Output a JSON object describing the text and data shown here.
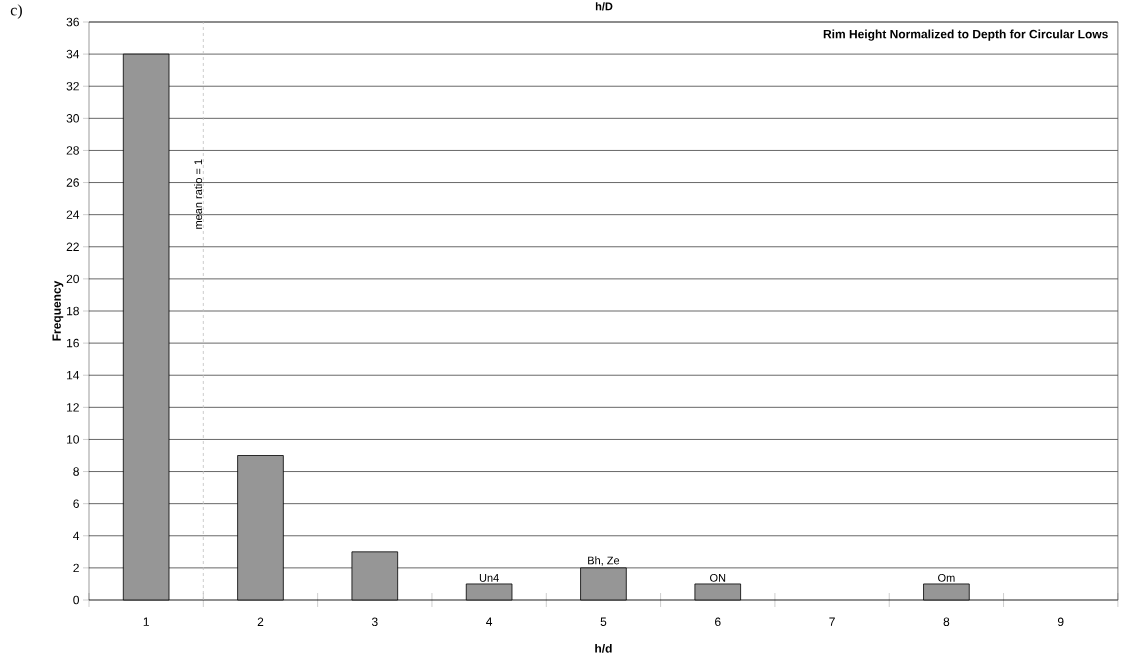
{
  "chart_data": {
    "type": "bar",
    "title": "Rim Height Normalized to Depth for Circular Lows",
    "xlabel": "h/d",
    "ylabel": "Frequency",
    "x": [
      1,
      2,
      3,
      4,
      5,
      6,
      7,
      8,
      9
    ],
    "values": [
      34,
      9,
      3,
      1,
      2,
      1,
      0,
      1,
      0
    ],
    "color": "#969696",
    "xlim": [
      0.5,
      9.5
    ],
    "xticks": [
      1,
      2,
      3,
      4,
      5,
      6,
      7,
      8,
      9,
      {
        "value": 0.5,
        "label": null
      },
      {
        "value": 1.5,
        "label": null
      },
      {
        "value": 2.5,
        "label": null
      },
      {
        "value": 3.5,
        "label": null
      },
      {
        "value": 4.5,
        "label": null
      },
      {
        "value": 5.5,
        "label": null
      },
      {
        "value": 6.5,
        "label": null
      },
      {
        "value": 7.5,
        "label": null
      },
      {
        "value": 8.5,
        "label": null
      },
      {
        "value": 9.5,
        "label": null
      }
    ],
    "ylim": [
      0,
      36
    ],
    "yticks": [
      0,
      2,
      4,
      6,
      8,
      10,
      12,
      14,
      16,
      18,
      20,
      22,
      24,
      26,
      28,
      30,
      32,
      34,
      36
    ],
    "grid": "y",
    "ref_lines": [
      {
        "axis": "x",
        "value": 1.5,
        "label": "mean  ratio = 1",
        "color": "#c0c0c0",
        "line_style": "dashed"
      }
    ],
    "annotations": [
      "c)",
      "h/D",
      {
        "text": "Un4",
        "x": 4,
        "y": 1
      },
      {
        "text": "Bh, Ze",
        "x": 5,
        "y": 2
      },
      {
        "text": "ON",
        "x": 6,
        "y": 1
      },
      {
        "text": "Om",
        "x": 8,
        "y": 1
      }
    ]
  }
}
